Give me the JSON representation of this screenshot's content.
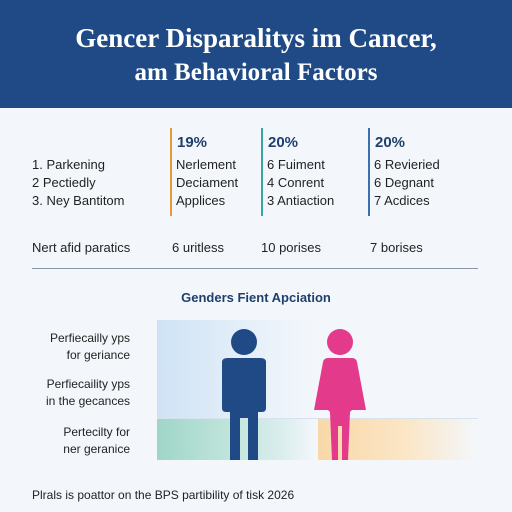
{
  "header": {
    "title_line1": "Gencer Disparalitys im Cancer,",
    "title_line2": "am Behavioral Factors"
  },
  "stats": {
    "row_labels": [
      "1. Parkening",
      "2 Pectiedly",
      "3. Ney Bantitom"
    ],
    "columns": [
      {
        "percent": "19%",
        "items": [
          "Nerlement",
          "Deciament",
          "Applices"
        ],
        "summary": "6 uritless",
        "accent": "#e8963a"
      },
      {
        "percent": "20%",
        "items": [
          "6 Fuiment",
          "4 Conrent",
          "3 Antiaction"
        ],
        "summary": "10 porises",
        "accent": "#3aa6a0"
      },
      {
        "percent": "20%",
        "items": [
          "6 Revieried",
          "6 Degnant",
          "7 Acdices"
        ],
        "summary": "7 borises",
        "accent": "#3a6fb0"
      }
    ],
    "summary_label": "Nert afid paratics"
  },
  "chart": {
    "title": "Genders Fient Apciation",
    "labels": [
      [
        "Perfiecailly yps",
        "for geriance"
      ],
      [
        "Perfiecaility yps",
        "in the gecances"
      ],
      [
        "Pertecilty for",
        "ner geranice"
      ]
    ],
    "male_color": "#1f4a86",
    "female_color": "#e43a8c"
  },
  "footer": {
    "text": "Plrals is poattor on the BPS partibility of tisk 2026"
  }
}
